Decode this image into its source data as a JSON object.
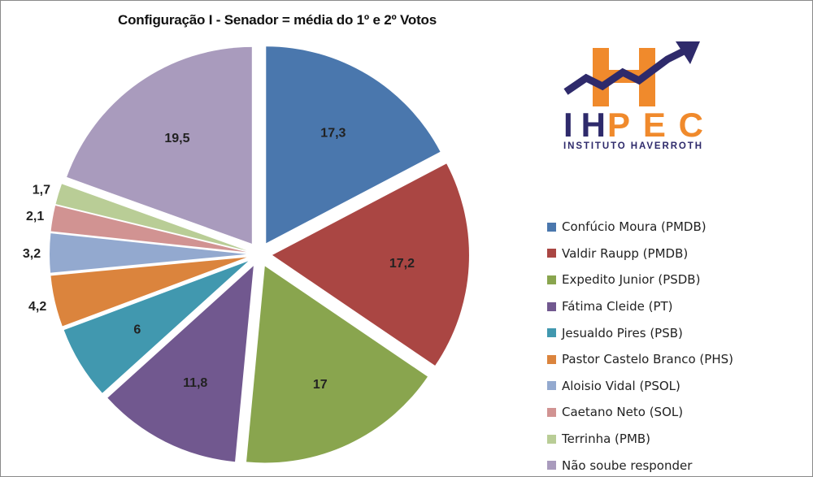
{
  "chart_data": {
    "type": "pie",
    "title": "Configuração I - Senador = média do 1º e 2º Votos",
    "legend_position": "right",
    "exploded": true,
    "series": [
      {
        "name": "Confúcio Moura (PMDB)",
        "value": 17.3,
        "label": "17,3",
        "color": "#4a77ad"
      },
      {
        "name": "Valdir Raupp (PMDB)",
        "value": 17.2,
        "label": "17,2",
        "color": "#aa4643"
      },
      {
        "name": "Expedito Junior (PSDB)",
        "value": 17,
        "label": "17",
        "color": "#89a54e"
      },
      {
        "name": "Fátima Cleide (PT)",
        "value": 11.8,
        "label": "11,8",
        "color": "#71588f"
      },
      {
        "name": "Jesualdo Pires (PSB)",
        "value": 6,
        "label": "6",
        "color": "#4198af"
      },
      {
        "name": "Pastor Castelo Branco (PHS)",
        "value": 4.2,
        "label": "4,2",
        "color": "#db843d"
      },
      {
        "name": "Aloisio Vidal  (PSOL)",
        "value": 3.2,
        "label": "3,2",
        "color": "#93a9cf"
      },
      {
        "name": "Caetano Neto (SOL)",
        "value": 2.1,
        "label": "2,1",
        "color": "#d19392"
      },
      {
        "name": "Terrinha (PMB)",
        "value": 1.7,
        "label": "1,7",
        "color": "#b9cd96"
      },
      {
        "name": "Não soube responder",
        "value": 19.5,
        "label": "19,5",
        "color": "#a99bbd"
      }
    ]
  },
  "logo": {
    "text": "IHPEC",
    "subtitle": "INSTITUTO HAVERROTH",
    "colors": {
      "orange": "#f08a2c",
      "navy": "#2e2a6b"
    }
  }
}
